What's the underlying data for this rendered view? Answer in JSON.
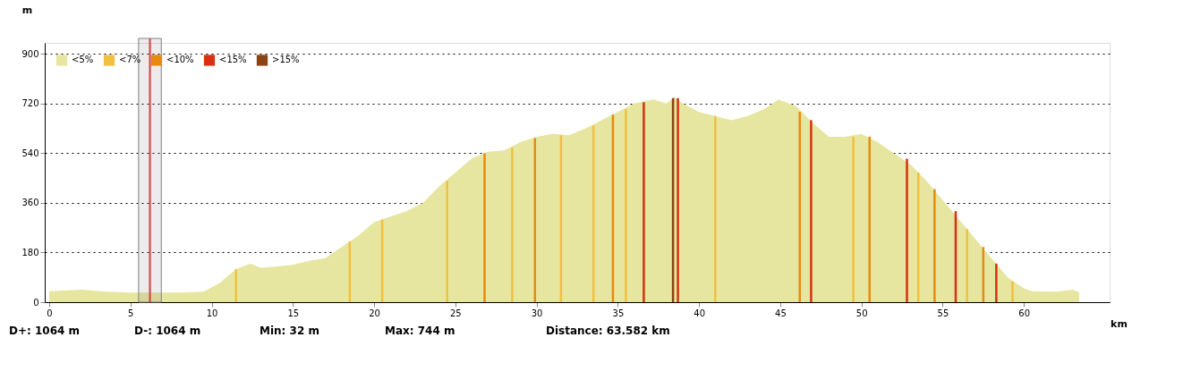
{
  "chart_data": {
    "type": "area",
    "xlabel": "km",
    "ylabel": "m",
    "xlim": [
      0,
      65
    ],
    "xticks": [
      0,
      5,
      10,
      15,
      20,
      25,
      30,
      35,
      40,
      45,
      50,
      55,
      60
    ],
    "ylim": [
      0,
      940
    ],
    "yticks": [
      0,
      180,
      360,
      540,
      720,
      900
    ],
    "grid": "y",
    "legend": "top left",
    "series": [
      {
        "name": "<5%",
        "color": "#e6e6a0",
        "x": [
          0,
          2,
          3.5,
          5,
          8,
          9.5,
          10.5,
          11.5,
          12.4,
          13,
          14,
          15,
          16,
          17,
          18,
          19,
          20,
          21,
          22,
          23,
          24,
          25,
          26,
          27,
          28,
          29,
          30,
          31,
          32,
          33,
          34,
          35,
          36,
          37.2,
          38,
          38.5,
          39,
          40,
          41,
          42,
          43,
          44,
          44.9,
          46,
          47,
          48,
          49,
          50,
          51,
          52,
          53,
          54,
          55,
          56,
          57,
          58,
          59,
          60,
          60.5,
          62,
          63,
          63.4
        ],
        "values": [
          40,
          45,
          38,
          35,
          35,
          38,
          70,
          120,
          140,
          125,
          130,
          135,
          150,
          160,
          200,
          240,
          290,
          310,
          330,
          360,
          420,
          470,
          520,
          545,
          550,
          580,
          600,
          610,
          605,
          630,
          660,
          690,
          720,
          735,
          720,
          744,
          720,
          690,
          675,
          660,
          675,
          700,
          735,
          710,
          650,
          600,
          600,
          610,
          580,
          540,
          500,
          440,
          370,
          300,
          230,
          160,
          90,
          50,
          40,
          38,
          45,
          35
        ]
      },
      {
        "name": "<7%",
        "type": "bar",
        "color": "#f0c040",
        "x": [
          11.5,
          18.5,
          20.5,
          24.5,
          28.5,
          31.5,
          33.5,
          35.5,
          41,
          49.5,
          53.5,
          56.5,
          59.3
        ],
        "values": [
          120,
          220,
          300,
          440,
          560,
          605,
          640,
          700,
          675,
          600,
          470,
          265,
          75
        ]
      },
      {
        "name": "<10%",
        "type": "bar",
        "color": "#e88a10",
        "x": [
          26.8,
          29.9,
          34.7,
          46.2,
          50.5,
          54.5,
          57.5
        ],
        "values": [
          540,
          595,
          680,
          690,
          600,
          410,
          200
        ]
      },
      {
        "name": "<15%",
        "type": "bar",
        "color": "#d83010",
        "x": [
          36.6,
          38.7,
          46.9,
          52.8,
          55.8,
          58.3
        ],
        "values": [
          725,
          740,
          660,
          520,
          330,
          140
        ]
      },
      {
        "name": ">15%",
        "type": "bar",
        "color": "#8b4513",
        "x": [
          38.4
        ],
        "values": [
          740
        ]
      }
    ],
    "bands": [
      {
        "axis": "x",
        "from": 5.5,
        "to": 6.9,
        "color": "#808080"
      }
    ],
    "ref_lines": [
      {
        "axis": "x",
        "value": 6.2,
        "color": "#d04040"
      }
    ],
    "annotations": [
      "D+: 1064 m",
      "D-: 1064 m",
      "Min: 32 m",
      "Max: 744 m",
      "Distance: 63.582 km"
    ]
  }
}
